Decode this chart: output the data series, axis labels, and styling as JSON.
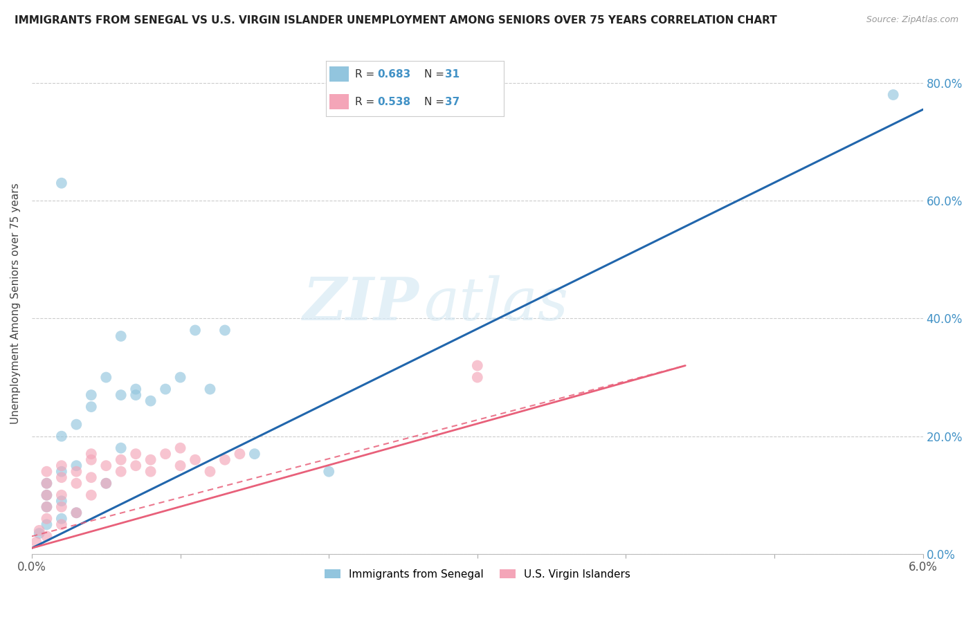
{
  "title": "IMMIGRANTS FROM SENEGAL VS U.S. VIRGIN ISLANDER UNEMPLOYMENT AMONG SENIORS OVER 75 YEARS CORRELATION CHART",
  "source": "Source: ZipAtlas.com",
  "ylabel": "Unemployment Among Seniors over 75 years",
  "legend_blue_r": "0.683",
  "legend_blue_n": "31",
  "legend_pink_r": "0.538",
  "legend_pink_n": "37",
  "watermark_zip": "ZIP",
  "watermark_atlas": "atlas",
  "blue_color": "#92c5de",
  "pink_color": "#f4a5b8",
  "blue_line_color": "#2166ac",
  "pink_line_color": "#e8607a",
  "blue_scatter": [
    [
      0.0005,
      0.035
    ],
    [
      0.001,
      0.05
    ],
    [
      0.001,
      0.08
    ],
    [
      0.001,
      0.1
    ],
    [
      0.001,
      0.12
    ],
    [
      0.002,
      0.06
    ],
    [
      0.002,
      0.09
    ],
    [
      0.002,
      0.14
    ],
    [
      0.002,
      0.2
    ],
    [
      0.003,
      0.07
    ],
    [
      0.003,
      0.15
    ],
    [
      0.003,
      0.22
    ],
    [
      0.004,
      0.25
    ],
    [
      0.004,
      0.27
    ],
    [
      0.005,
      0.12
    ],
    [
      0.005,
      0.3
    ],
    [
      0.006,
      0.18
    ],
    [
      0.006,
      0.27
    ],
    [
      0.007,
      0.27
    ],
    [
      0.007,
      0.28
    ],
    [
      0.008,
      0.26
    ],
    [
      0.009,
      0.28
    ],
    [
      0.01,
      0.3
    ],
    [
      0.011,
      0.38
    ],
    [
      0.012,
      0.28
    ],
    [
      0.013,
      0.38
    ],
    [
      0.002,
      0.63
    ],
    [
      0.006,
      0.37
    ],
    [
      0.015,
      0.17
    ],
    [
      0.02,
      0.14
    ],
    [
      0.058,
      0.78
    ]
  ],
  "pink_scatter": [
    [
      0.0003,
      0.02
    ],
    [
      0.0005,
      0.04
    ],
    [
      0.001,
      0.03
    ],
    [
      0.001,
      0.06
    ],
    [
      0.001,
      0.08
    ],
    [
      0.001,
      0.1
    ],
    [
      0.001,
      0.12
    ],
    [
      0.001,
      0.14
    ],
    [
      0.002,
      0.05
    ],
    [
      0.002,
      0.08
    ],
    [
      0.002,
      0.1
    ],
    [
      0.002,
      0.13
    ],
    [
      0.002,
      0.15
    ],
    [
      0.003,
      0.07
    ],
    [
      0.003,
      0.12
    ],
    [
      0.003,
      0.14
    ],
    [
      0.004,
      0.1
    ],
    [
      0.004,
      0.13
    ],
    [
      0.004,
      0.16
    ],
    [
      0.004,
      0.17
    ],
    [
      0.005,
      0.12
    ],
    [
      0.005,
      0.15
    ],
    [
      0.006,
      0.14
    ],
    [
      0.006,
      0.16
    ],
    [
      0.007,
      0.15
    ],
    [
      0.007,
      0.17
    ],
    [
      0.008,
      0.16
    ],
    [
      0.008,
      0.14
    ],
    [
      0.009,
      0.17
    ],
    [
      0.01,
      0.15
    ],
    [
      0.01,
      0.18
    ],
    [
      0.011,
      0.16
    ],
    [
      0.012,
      0.14
    ],
    [
      0.013,
      0.16
    ],
    [
      0.014,
      0.17
    ],
    [
      0.03,
      0.32
    ],
    [
      0.03,
      0.3
    ]
  ],
  "xlim": [
    0.0,
    0.06
  ],
  "ylim": [
    0.0,
    0.85
  ],
  "ytick_vals": [
    0.0,
    0.2,
    0.4,
    0.6,
    0.8
  ],
  "figsize": [
    14.06,
    8.92
  ],
  "dpi": 100,
  "blue_line_endpoints": [
    [
      0.0,
      0.01
    ],
    [
      0.06,
      0.755
    ]
  ],
  "pink_line_endpoints": [
    [
      0.0,
      0.03
    ],
    [
      0.044,
      0.32
    ]
  ]
}
